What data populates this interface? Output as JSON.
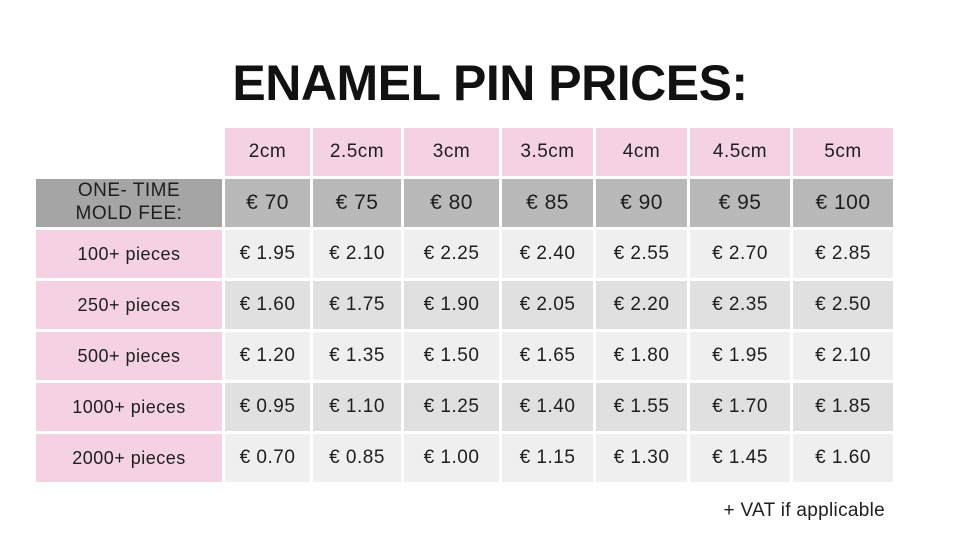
{
  "title": "ENAMEL PIN PRICES:",
  "footnote": "+ VAT if applicable",
  "colors": {
    "page-bg": "#ffffff",
    "pink": "#f4d2e4",
    "mold-label-gray": "#a6a5a5",
    "mold-value-gray": "#bab9b9",
    "row-light": "#f0eff0",
    "row-dark": "#e1e0e0",
    "text": "#1e1e1e"
  },
  "chart_data": {
    "type": "table",
    "title": "ENAMEL PIN PRICES:",
    "column_headers": [
      "2cm",
      "2.5cm",
      "3cm",
      "3.5cm",
      "4cm",
      "4.5cm",
      "5cm"
    ],
    "mold_fee_row": {
      "label": "ONE- TIME\nMOLD FEE:",
      "values": [
        "€ 70",
        "€ 75",
        "€ 80",
        "€ 85",
        "€ 90",
        "€ 95",
        "€ 100"
      ]
    },
    "price_rows": [
      {
        "label": "100+ pieces",
        "values": [
          "€ 1.95",
          "€ 2.10",
          "€ 2.25",
          "€ 2.40",
          "€ 2.55",
          "€ 2.70",
          "€ 2.85"
        ]
      },
      {
        "label": "250+ pieces",
        "values": [
          "€ 1.60",
          "€ 1.75",
          "€ 1.90",
          "€ 2.05",
          "€ 2.20",
          "€ 2.35",
          "€ 2.50"
        ]
      },
      {
        "label": "500+ pieces",
        "values": [
          "€ 1.20",
          "€ 1.35",
          "€ 1.50",
          "€ 1.65",
          "€ 1.80",
          "€ 1.95",
          "€ 2.10"
        ]
      },
      {
        "label": "1000+ pieces",
        "values": [
          "€ 0.95",
          "€ 1.10",
          "€ 1.25",
          "€ 1.40",
          "€ 1.55",
          "€ 1.70",
          "€ 1.85"
        ]
      },
      {
        "label": "2000+ pieces",
        "values": [
          "€ 0.70",
          "€ 0.85",
          "€ 1.00",
          "€ 1.15",
          "€ 1.30",
          "€ 1.45",
          "€ 1.60"
        ]
      }
    ],
    "footnote": "+ VAT if applicable"
  }
}
